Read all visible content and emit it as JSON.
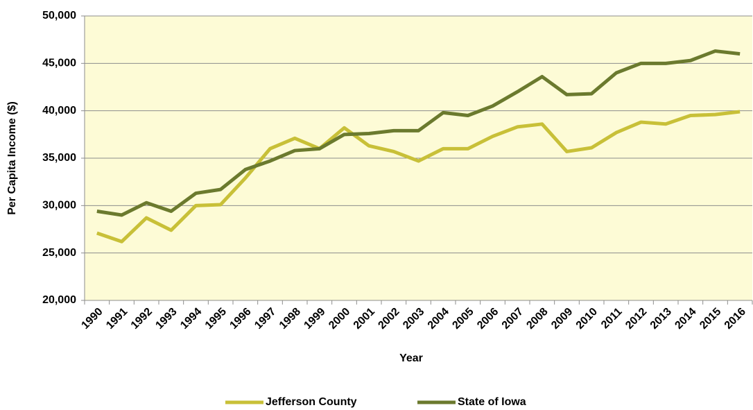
{
  "chart_data": {
    "type": "line",
    "x_label": "Year",
    "y_label": "Per Capita Income ($)",
    "categories": [
      "1990",
      "1991",
      "1992",
      "1993",
      "1994",
      "1995",
      "1996",
      "1997",
      "1998",
      "1999",
      "2000",
      "2001",
      "2002",
      "2003",
      "2004",
      "2005",
      "2006",
      "2007",
      "2008",
      "2009",
      "2010",
      "2011",
      "2012",
      "2013",
      "2014",
      "2015",
      "2016"
    ],
    "series": [
      {
        "name": "Jefferson County",
        "color": "#c8c038",
        "values": [
          27100,
          26200,
          28700,
          27400,
          30000,
          30100,
          32900,
          36000,
          37100,
          36000,
          38200,
          36300,
          35700,
          34700,
          36000,
          36000,
          37300,
          38300,
          38600,
          35700,
          36100,
          37700,
          38800,
          38600,
          39500,
          39600,
          39900
        ]
      },
      {
        "name": "State of Iowa",
        "color": "#6b7a2e",
        "values": [
          29400,
          29000,
          30300,
          29400,
          31300,
          31700,
          33800,
          34700,
          35800,
          36000,
          37500,
          37600,
          37900,
          37900,
          39800,
          39500,
          40500,
          42000,
          43600,
          41700,
          41800,
          44000,
          45000,
          45000,
          45300,
          46300,
          46000
        ]
      }
    ],
    "ylim": [
      20000,
      50000
    ],
    "yticks": [
      {
        "value": 20000,
        "label": "20,000"
      },
      {
        "value": 25000,
        "label": "25,000"
      },
      {
        "value": 30000,
        "label": "30,000"
      },
      {
        "value": 35000,
        "label": "35,000"
      },
      {
        "value": 40000,
        "label": "40,000"
      },
      {
        "value": 45000,
        "label": "45,000"
      },
      {
        "value": 50000,
        "label": "50,000"
      }
    ],
    "grid": true,
    "legend": "bottom",
    "background": "#fdfbd6"
  }
}
